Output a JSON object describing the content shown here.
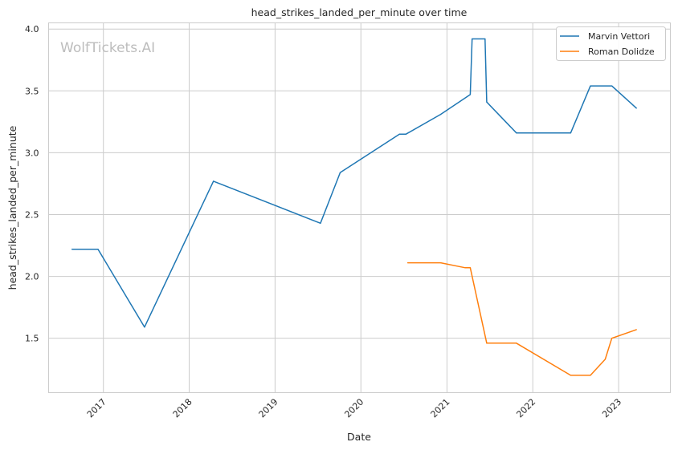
{
  "chart_data": {
    "type": "line",
    "title": "head_strikes_landed_per_minute over time",
    "xlabel": "Date",
    "ylabel": "head_strikes_landed_per_minute",
    "watermark": "WolfTickets.AI",
    "x_ticks": [
      "2017",
      "2018",
      "2019",
      "2020",
      "2021",
      "2022",
      "2023"
    ],
    "y_ticks": [
      "1.5",
      "2.0",
      "2.5",
      "3.0",
      "3.5",
      "4.0"
    ],
    "xlim": [
      "2016-05-13",
      "2023-08-09"
    ],
    "ylim": [
      1.06,
      4.05
    ],
    "grid": true,
    "legend_position": "top-right",
    "series": [
      {
        "name": "Marvin Vettori",
        "color": "#1f77b4",
        "points": [
          [
            "2016-08-20",
            2.22
          ],
          [
            "2016-12-09",
            2.22
          ],
          [
            "2017-06-25",
            1.59
          ],
          [
            "2018-04-14",
            2.77
          ],
          [
            "2019-07-13",
            2.43
          ],
          [
            "2019-10-05",
            2.84
          ],
          [
            "2020-06-13",
            3.15
          ],
          [
            "2020-07-10",
            3.15
          ],
          [
            "2020-12-05",
            3.31
          ],
          [
            "2021-04-10",
            3.47
          ],
          [
            "2021-04-18",
            3.92
          ],
          [
            "2021-06-12",
            3.92
          ],
          [
            "2021-06-19",
            3.41
          ],
          [
            "2021-10-23",
            3.16
          ],
          [
            "2022-06-11",
            3.16
          ],
          [
            "2022-09-03",
            3.54
          ],
          [
            "2022-12-03",
            3.54
          ],
          [
            "2023-03-18",
            3.36
          ]
        ]
      },
      {
        "name": "Roman Dolidze",
        "color": "#ff7f0e",
        "points": [
          [
            "2020-07-18",
            2.11
          ],
          [
            "2020-12-05",
            2.11
          ],
          [
            "2021-03-20",
            2.07
          ],
          [
            "2021-04-10",
            2.07
          ],
          [
            "2021-06-19",
            1.46
          ],
          [
            "2021-10-23",
            1.46
          ],
          [
            "2022-06-11",
            1.2
          ],
          [
            "2022-09-03",
            1.2
          ],
          [
            "2022-11-05",
            1.33
          ],
          [
            "2022-12-03",
            1.5
          ],
          [
            "2023-03-18",
            1.57
          ]
        ]
      }
    ]
  }
}
